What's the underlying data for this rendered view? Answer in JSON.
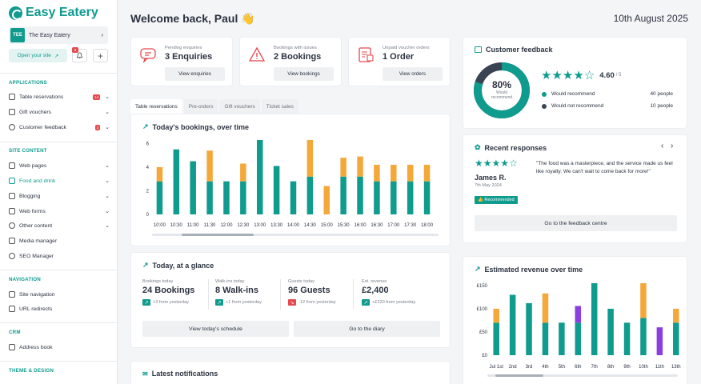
{
  "brand": {
    "name": "Easy Eatery"
  },
  "tenant": {
    "badge": "TEE",
    "name": "The Easy Eatery"
  },
  "top_actions": {
    "open_site": "Open your site",
    "bell_count": "9"
  },
  "sidebar": {
    "applications": {
      "title": "APPLICATIONS",
      "items": [
        {
          "label": "Table reservations",
          "count": "14"
        },
        {
          "label": "Gift vouchers"
        },
        {
          "label": "Customer feedback",
          "count": "3"
        }
      ]
    },
    "site_content": {
      "title": "SITE CONTENT",
      "items": [
        {
          "label": "Web pages"
        },
        {
          "label": "Food and drink"
        },
        {
          "label": "Blogging"
        },
        {
          "label": "Web forms"
        },
        {
          "label": "Other content"
        },
        {
          "label": "Media manager"
        },
        {
          "label": "SEO Manager"
        }
      ]
    },
    "navigation": {
      "title": "NAVIGATION",
      "items": [
        {
          "label": "Site navigation"
        },
        {
          "label": "URL redirects"
        }
      ]
    },
    "crm": {
      "title": "CRM",
      "items": [
        {
          "label": "Address book"
        }
      ]
    },
    "theme": {
      "title": "THEME & DESIGN"
    }
  },
  "header": {
    "title": "Welcome back, Paul 👋",
    "date": "10th August 2025"
  },
  "stats": [
    {
      "small": "Pending enquiries",
      "big": "3 Enquiries",
      "button": "View enquiries"
    },
    {
      "small": "Bookings with issues",
      "big": "2 Bookings",
      "button": "View bookings"
    },
    {
      "small": "Unpaid voucher orders",
      "big": "1 Order",
      "button": "View orders"
    }
  ],
  "tabs": [
    "Table reservations",
    "Pre-orders",
    "Gift vouchers",
    "Ticket sales"
  ],
  "bookings_chart": {
    "title": "Today's bookings, over time"
  },
  "glance": {
    "title": "Today, at a glance",
    "items": [
      {
        "small": "Bookings today",
        "big": "24 Bookings",
        "delta": "+3 from yesterday"
      },
      {
        "small": "Walk-ins today",
        "big": "8 Walk-ins",
        "delta": "+1 from yesterday"
      },
      {
        "small": "Guests today",
        "big": "96 Guests",
        "delta": "-12 from yesterday"
      },
      {
        "small": "Est. revenue",
        "big": "£2,400",
        "delta": "+£220 from yesterday"
      }
    ],
    "btn_schedule": "View today's schedule",
    "btn_diary": "Go to the diary"
  },
  "notifications": {
    "title": "Latest notifications"
  },
  "feedback": {
    "title": "Customer feedback",
    "percent": "80%",
    "percent_label": "Would recommend",
    "rating": "4.60",
    "rating_max": "/ 5",
    "recommend_label": "Would recommend",
    "recommend_value": "40 people",
    "not_recommend_label": "Would not recommend",
    "not_recommend_value": "10 people",
    "recommend_fraction": 0.8
  },
  "responses": {
    "title": "Recent responses",
    "quote": "\"The food was a masterpiece, and the service made us feel like royalty. We can't wait to come back for more!\"",
    "name": "James R.",
    "date": "7th May 2024",
    "badge": "Recommended",
    "button": "Go to the feedback centre",
    "stars": 4
  },
  "revenue_chart": {
    "title": "Estimated revenue over time"
  },
  "colors": {
    "teal": "#0f9b8e",
    "orange": "#f5a83a",
    "purple": "#8a3fe0",
    "navy": "#3a4352"
  },
  "chart_data": [
    {
      "type": "bar",
      "title": "Today's bookings, over time",
      "categories": [
        "10:00",
        "10:30",
        "11:00",
        "11:30",
        "12:00",
        "12:30",
        "13:00",
        "13:30",
        "14:00",
        "14:30",
        "15:00",
        "15:30",
        "16:00",
        "16:30",
        "17:00",
        "17:30",
        "18:00"
      ],
      "series": [
        {
          "values": [
            2.8,
            5.5,
            4.5,
            2.8,
            2.8,
            2.8,
            6.3,
            4.1,
            2.8,
            3.2,
            0,
            3.2,
            3.2,
            2.8,
            2.8,
            2.8,
            2.8
          ]
        },
        {
          "values": [
            1.2,
            0,
            0,
            2.6,
            0,
            1.5,
            0,
            0,
            0,
            3.1,
            2.4,
            1.6,
            1.7,
            1.4,
            1.4,
            1.4,
            1.4
          ]
        }
      ],
      "yticks": [
        0,
        2,
        4,
        6
      ],
      "ylim": [
        0,
        6.5
      ],
      "stacked": true
    },
    {
      "type": "bar",
      "title": "Estimated revenue over time",
      "categories": [
        "Jul 1st",
        "2nd",
        "3rd",
        "4th",
        "5th",
        "6th",
        "7th",
        "8th",
        "9th",
        "10th",
        "11th",
        "13th"
      ],
      "series": [
        {
          "values": [
            70,
            130,
            112,
            70,
            70,
            70,
            155,
            100,
            70,
            80,
            0,
            70
          ]
        },
        {
          "values": [
            30,
            0,
            0,
            63,
            0,
            0,
            0,
            0,
            0,
            75,
            0,
            30
          ]
        },
        {
          "values": [
            0,
            0,
            0,
            0,
            0,
            36,
            0,
            0,
            0,
            0,
            60,
            0
          ]
        }
      ],
      "yticks": [
        "£0",
        "£50",
        "£100",
        "£150"
      ],
      "ylim": [
        0,
        155
      ],
      "stacked": true
    }
  ]
}
